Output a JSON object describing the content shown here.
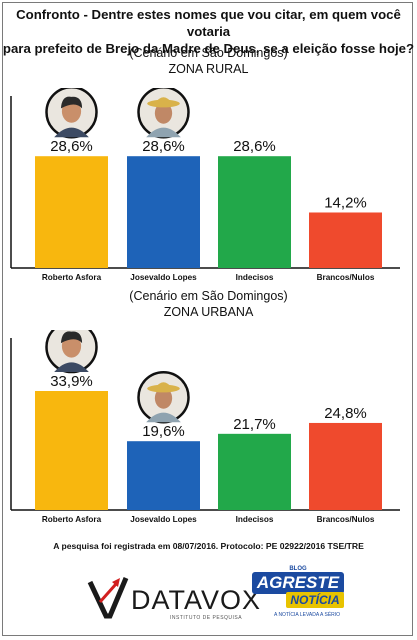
{
  "header": {
    "question_line1": "Confronto - Dentre estes nomes que vou citar, em quem você votaria",
    "question_line2": "para prefeito de Brejo da Madre de Deus, se a eleição fosse hoje?"
  },
  "chart_data": [
    {
      "type": "bar",
      "subtitle": "(Cenário em São Domingos)",
      "title": "ZONA RURAL",
      "categories": [
        "Roberto Asfora",
        "Josevaldo Lopes",
        "Indecisos",
        "Brancos/Nulos"
      ],
      "values": [
        28.6,
        28.6,
        28.6,
        14.2
      ],
      "value_labels": [
        "28,6%",
        "28,6%",
        "28,6%",
        "14,2%"
      ],
      "colors": [
        "#f8b70e",
        "#1e63b8",
        "#22a84a",
        "#ef4a2d"
      ],
      "candidate_photos": [
        true,
        true,
        false,
        false
      ],
      "ylim": [
        0,
        44
      ],
      "grid": false,
      "legend": "none"
    },
    {
      "type": "bar",
      "subtitle": "(Cenário em São Domingos)",
      "title": "ZONA URBANA",
      "categories": [
        "Roberto Asfora",
        "Josevaldo Lopes",
        "Indecisos",
        "Brancos/Nulos"
      ],
      "values": [
        33.9,
        19.6,
        21.7,
        24.8
      ],
      "value_labels": [
        "33,9%",
        "19,6%",
        "21,7%",
        "24,8%"
      ],
      "colors": [
        "#f8b70e",
        "#1e63b8",
        "#22a84a",
        "#ef4a2d"
      ],
      "candidate_photos": [
        true,
        true,
        false,
        false
      ],
      "ylim": [
        0,
        49
      ],
      "grid": false,
      "legend": "none"
    }
  ],
  "footer": {
    "note": "A pesquisa foi registrada em 08/07/2016. Protocolo: PE 02922/2016 TSE/TRE"
  },
  "logos": {
    "datavox": "DATAVOX",
    "datavox_sub": "INSTITUTO DE PESQUISA",
    "agreste_top": "BLOG",
    "agreste": "AGRESTE",
    "noticia": "NOTÍCIA",
    "agreste_slogan": "A NOTÍCIA LEVADA A SÉRIO"
  }
}
